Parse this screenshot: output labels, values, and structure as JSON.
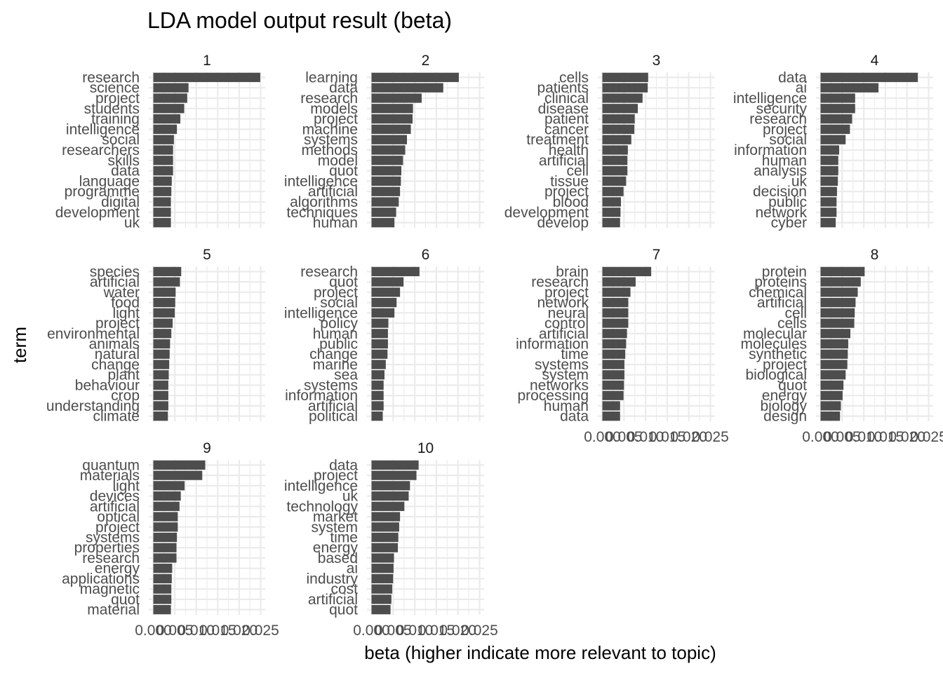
{
  "chart_data": {
    "type": "bar",
    "orientation": "horizontal",
    "faceted": true,
    "title": "LDA model output result (beta)",
    "xlabel": "beta (higher indicate more relevant to topic)",
    "ylabel": "term",
    "xlim": [
      0,
      0.025
    ],
    "x_ticks": [
      "0.000",
      "0.005",
      "0.010",
      "0.015",
      "0.020",
      "0.025"
    ],
    "grid": true,
    "facets": [
      {
        "label": "1",
        "terms": [
          "research",
          "science",
          "project",
          "students",
          "training",
          "intelligence",
          "social",
          "researchers",
          "skills",
          "data",
          "language",
          "programme",
          "digital",
          "development",
          "uk"
        ],
        "values": [
          0.0249,
          0.0082,
          0.0079,
          0.0072,
          0.0063,
          0.0055,
          0.0048,
          0.0046,
          0.0046,
          0.0046,
          0.0043,
          0.0042,
          0.0041,
          0.0041,
          0.0041
        ]
      },
      {
        "label": "2",
        "terms": [
          "learning",
          "data",
          "research",
          "models",
          "project",
          "machine",
          "systems",
          "methods",
          "model",
          "quot",
          "intelligence",
          "artificial",
          "algorithms",
          "techniques",
          "human"
        ],
        "values": [
          0.0202,
          0.0166,
          0.0116,
          0.0096,
          0.0095,
          0.0091,
          0.0082,
          0.0078,
          0.0073,
          0.0069,
          0.0068,
          0.0066,
          0.0063,
          0.0057,
          0.0053
        ]
      },
      {
        "label": "3",
        "terms": [
          "cells",
          "patients",
          "clinical",
          "disease",
          "patient",
          "cancer",
          "treatment",
          "health",
          "artificial",
          "cell",
          "tissue",
          "project",
          "blood",
          "development",
          "develop"
        ],
        "values": [
          0.0106,
          0.0105,
          0.0093,
          0.0082,
          0.0075,
          0.0074,
          0.0067,
          0.0059,
          0.0058,
          0.0058,
          0.0055,
          0.0049,
          0.0043,
          0.0042,
          0.0041
        ]
      },
      {
        "label": "4",
        "terms": [
          "data",
          "ai",
          "intelligence",
          "security",
          "research",
          "project",
          "social",
          "information",
          "human",
          "analysis",
          "uk",
          "decision",
          "public",
          "network",
          "cyber"
        ],
        "values": [
          0.0225,
          0.0134,
          0.008,
          0.008,
          0.0073,
          0.0068,
          0.0058,
          0.0043,
          0.0041,
          0.0041,
          0.004,
          0.0038,
          0.0037,
          0.0037,
          0.0035
        ]
      },
      {
        "label": "5",
        "terms": [
          "species",
          "artificial",
          "water",
          "food",
          "light",
          "project",
          "environmental",
          "animals",
          "natural",
          "change",
          "plant",
          "behaviour",
          "crop",
          "understanding",
          "climate"
        ],
        "values": [
          0.0065,
          0.0062,
          0.0052,
          0.0051,
          0.005,
          0.0045,
          0.0042,
          0.0039,
          0.0038,
          0.0037,
          0.0036,
          0.0035,
          0.0035,
          0.0035,
          0.0034
        ]
      },
      {
        "label": "6",
        "terms": [
          "research",
          "quot",
          "project",
          "social",
          "intelligence",
          "policy",
          "human",
          "public",
          "change",
          "marine",
          "sea",
          "systems",
          "information",
          "artificial",
          "political"
        ],
        "values": [
          0.0111,
          0.0074,
          0.0066,
          0.0058,
          0.0053,
          0.0039,
          0.0038,
          0.0038,
          0.0037,
          0.0033,
          0.003,
          0.0028,
          0.0028,
          0.0028,
          0.0026
        ]
      },
      {
        "label": "7",
        "terms": [
          "brain",
          "research",
          "project",
          "network",
          "neural",
          "control",
          "artificial",
          "information",
          "time",
          "systems",
          "system",
          "networks",
          "processing",
          "human",
          "data"
        ],
        "values": [
          0.0113,
          0.0077,
          0.0065,
          0.006,
          0.006,
          0.006,
          0.0057,
          0.0055,
          0.0053,
          0.0051,
          0.0051,
          0.005,
          0.0049,
          0.0041,
          0.0041
        ]
      },
      {
        "label": "8",
        "terms": [
          "protein",
          "proteins",
          "chemical",
          "artificial",
          "cell",
          "cells",
          "molecular",
          "molecules",
          "synthetic",
          "project",
          "biological",
          "quot",
          "energy",
          "biology",
          "design"
        ],
        "values": [
          0.0102,
          0.0093,
          0.0086,
          0.0081,
          0.0079,
          0.0078,
          0.0069,
          0.0064,
          0.0063,
          0.0062,
          0.0058,
          0.0053,
          0.0051,
          0.0047,
          0.0045
        ]
      },
      {
        "label": "9",
        "terms": [
          "quantum",
          "materials",
          "light",
          "devices",
          "artificial",
          "optical",
          "project",
          "systems",
          "properties",
          "research",
          "energy",
          "applications",
          "magnetic",
          "quot",
          "material"
        ],
        "values": [
          0.0121,
          0.0114,
          0.0073,
          0.0064,
          0.0061,
          0.0057,
          0.0057,
          0.0055,
          0.0054,
          0.0054,
          0.0044,
          0.0043,
          0.0042,
          0.0042,
          0.0041
        ]
      },
      {
        "label": "10",
        "terms": [
          "data",
          "project",
          "intelligence",
          "uk",
          "technology",
          "market",
          "system",
          "time",
          "energy",
          "based",
          "ai",
          "industry",
          "cost",
          "artificial",
          "quot"
        ],
        "values": [
          0.0109,
          0.0104,
          0.0089,
          0.0086,
          0.0076,
          0.0066,
          0.0064,
          0.0062,
          0.0061,
          0.0052,
          0.0051,
          0.005,
          0.0048,
          0.0046,
          0.0044
        ]
      }
    ]
  }
}
